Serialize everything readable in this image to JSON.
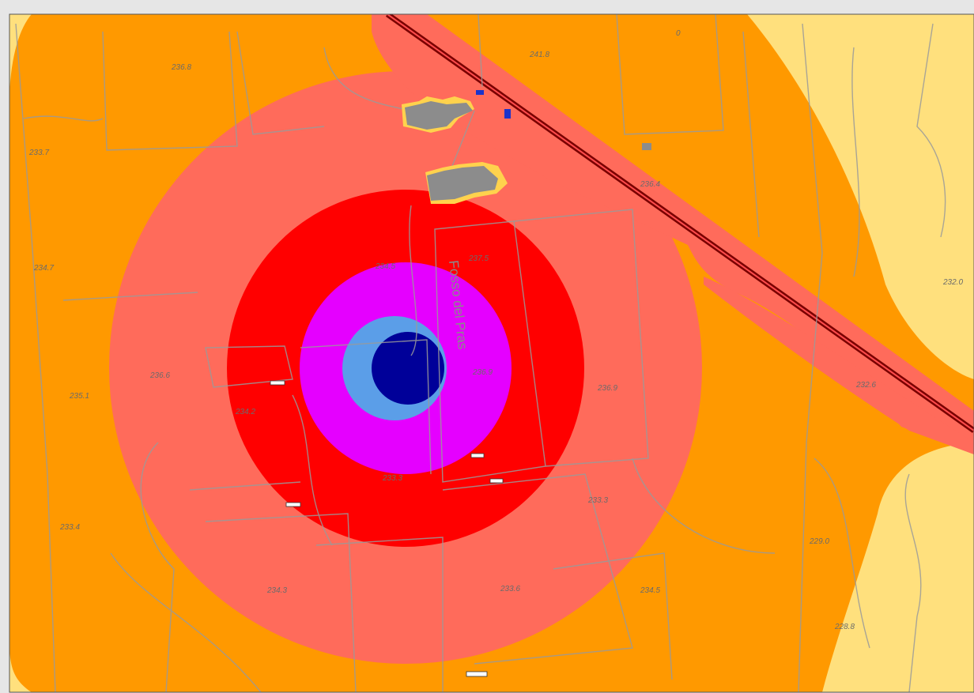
{
  "map": {
    "colors": {
      "frame": "#e6e6e6",
      "outer_zone": "#ffe07d",
      "zone_orange": "#ff9900",
      "zone_salmon": "#ff6b5b",
      "zone_red": "#ff0000",
      "zone_magenta": "#e500ff",
      "zone_lightblue": "#5b9ee8",
      "zone_navy": "#000099",
      "parcel_line": "#9a9a9a",
      "building_gray": "#8c8c8c",
      "building_blue": "#1a33cc",
      "railway": "#7a0000"
    },
    "road_name": "Fosso del Pras",
    "elevation_labels": [
      {
        "id": "e1",
        "text": "241.8"
      },
      {
        "id": "e2",
        "text": "0"
      },
      {
        "id": "e3",
        "text": "236.8"
      },
      {
        "id": "e4",
        "text": "233.7"
      },
      {
        "id": "e5",
        "text": "234.7"
      },
      {
        "id": "e6",
        "text": "234.5"
      },
      {
        "id": "e7",
        "text": "237.5"
      },
      {
        "id": "e8",
        "text": "232.0"
      },
      {
        "id": "e9",
        "text": "236.9"
      },
      {
        "id": "e10",
        "text": "236.6"
      },
      {
        "id": "e11",
        "text": "235.1"
      },
      {
        "id": "e12",
        "text": "234.2"
      },
      {
        "id": "e13",
        "text": "236.9"
      },
      {
        "id": "e14",
        "text": "233.3"
      },
      {
        "id": "e15",
        "text": "232.6"
      },
      {
        "id": "e16",
        "text": "233.4"
      },
      {
        "id": "e17",
        "text": "233.3"
      },
      {
        "id": "e18",
        "text": "229.0"
      },
      {
        "id": "e19",
        "text": "228.8"
      },
      {
        "id": "e20",
        "text": "234.3"
      },
      {
        "id": "e21",
        "text": "233.6"
      },
      {
        "id": "e22",
        "text": "234.5"
      },
      {
        "id": "e23",
        "text": "236.4"
      }
    ]
  }
}
